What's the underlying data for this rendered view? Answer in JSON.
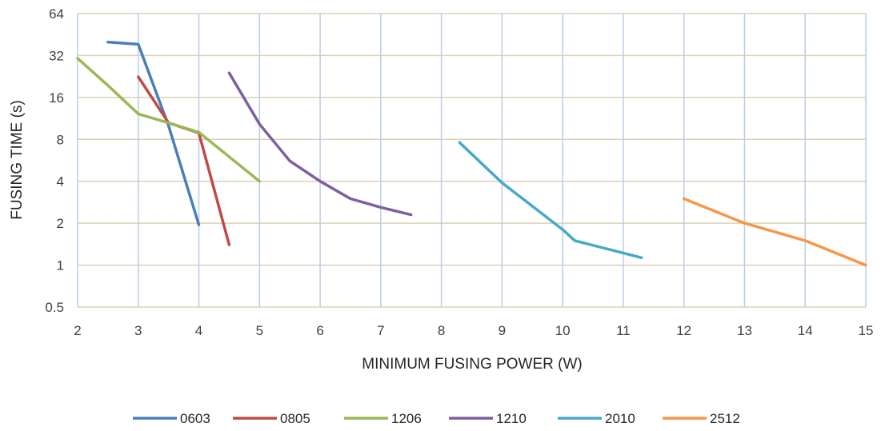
{
  "chart_data": {
    "type": "line",
    "title": "",
    "xlabel": "MINIMUM FUSING POWER (W)",
    "ylabel": "FUSING TIME (s)",
    "xlim": [
      2,
      15
    ],
    "ylim": [
      0.5,
      64
    ],
    "yscale": "log2",
    "xticks": [
      2,
      3,
      4,
      5,
      6,
      7,
      8,
      9,
      10,
      11,
      12,
      13,
      14,
      15
    ],
    "yticks": [
      0.5,
      1,
      2,
      4,
      8,
      16,
      32,
      64
    ],
    "xtick_labels": [
      "2",
      "3",
      "4",
      "5",
      "6",
      "7",
      "8",
      "9",
      "10",
      "11",
      "12",
      "13",
      "14",
      "15"
    ],
    "ytick_labels": [
      "0.5",
      "1",
      "2",
      "4",
      "8",
      "16",
      "32",
      "64"
    ],
    "grid": true,
    "legend_position": "bottom",
    "series": [
      {
        "name": "0603",
        "color": "#4A7EBB",
        "points": [
          [
            2.5,
            40
          ],
          [
            3.0,
            38.5
          ],
          [
            3.5,
            10
          ],
          [
            4.0,
            1.95
          ]
        ]
      },
      {
        "name": "0805",
        "color": "#BE4B48",
        "points": [
          [
            3.0,
            22.5
          ],
          [
            3.5,
            10.5
          ],
          [
            4.0,
            8.9
          ],
          [
            4.5,
            1.4
          ]
        ]
      },
      {
        "name": "1206",
        "color": "#98B954",
        "points": [
          [
            2.0,
            30.5
          ],
          [
            2.5,
            19.5
          ],
          [
            3.0,
            12.2
          ],
          [
            3.5,
            10.5
          ],
          [
            4.0,
            9.0
          ],
          [
            5.0,
            4.0
          ]
        ]
      },
      {
        "name": "1210",
        "color": "#7D60A0",
        "points": [
          [
            4.5,
            24
          ],
          [
            5.0,
            10.3
          ],
          [
            5.5,
            5.6
          ],
          [
            6.0,
            4.0
          ],
          [
            6.5,
            3.0
          ],
          [
            7.0,
            2.6
          ],
          [
            7.5,
            2.3
          ]
        ]
      },
      {
        "name": "2010",
        "color": "#46AAC5",
        "points": [
          [
            8.3,
            7.6
          ],
          [
            9.0,
            3.9
          ],
          [
            10.0,
            1.8
          ],
          [
            10.2,
            1.5
          ],
          [
            11.3,
            1.13
          ]
        ]
      },
      {
        "name": "2512",
        "color": "#F79646",
        "points": [
          [
            12.0,
            3.0
          ],
          [
            13.0,
            2.0
          ],
          [
            14.0,
            1.5
          ],
          [
            15.0,
            1.0
          ]
        ]
      }
    ]
  }
}
